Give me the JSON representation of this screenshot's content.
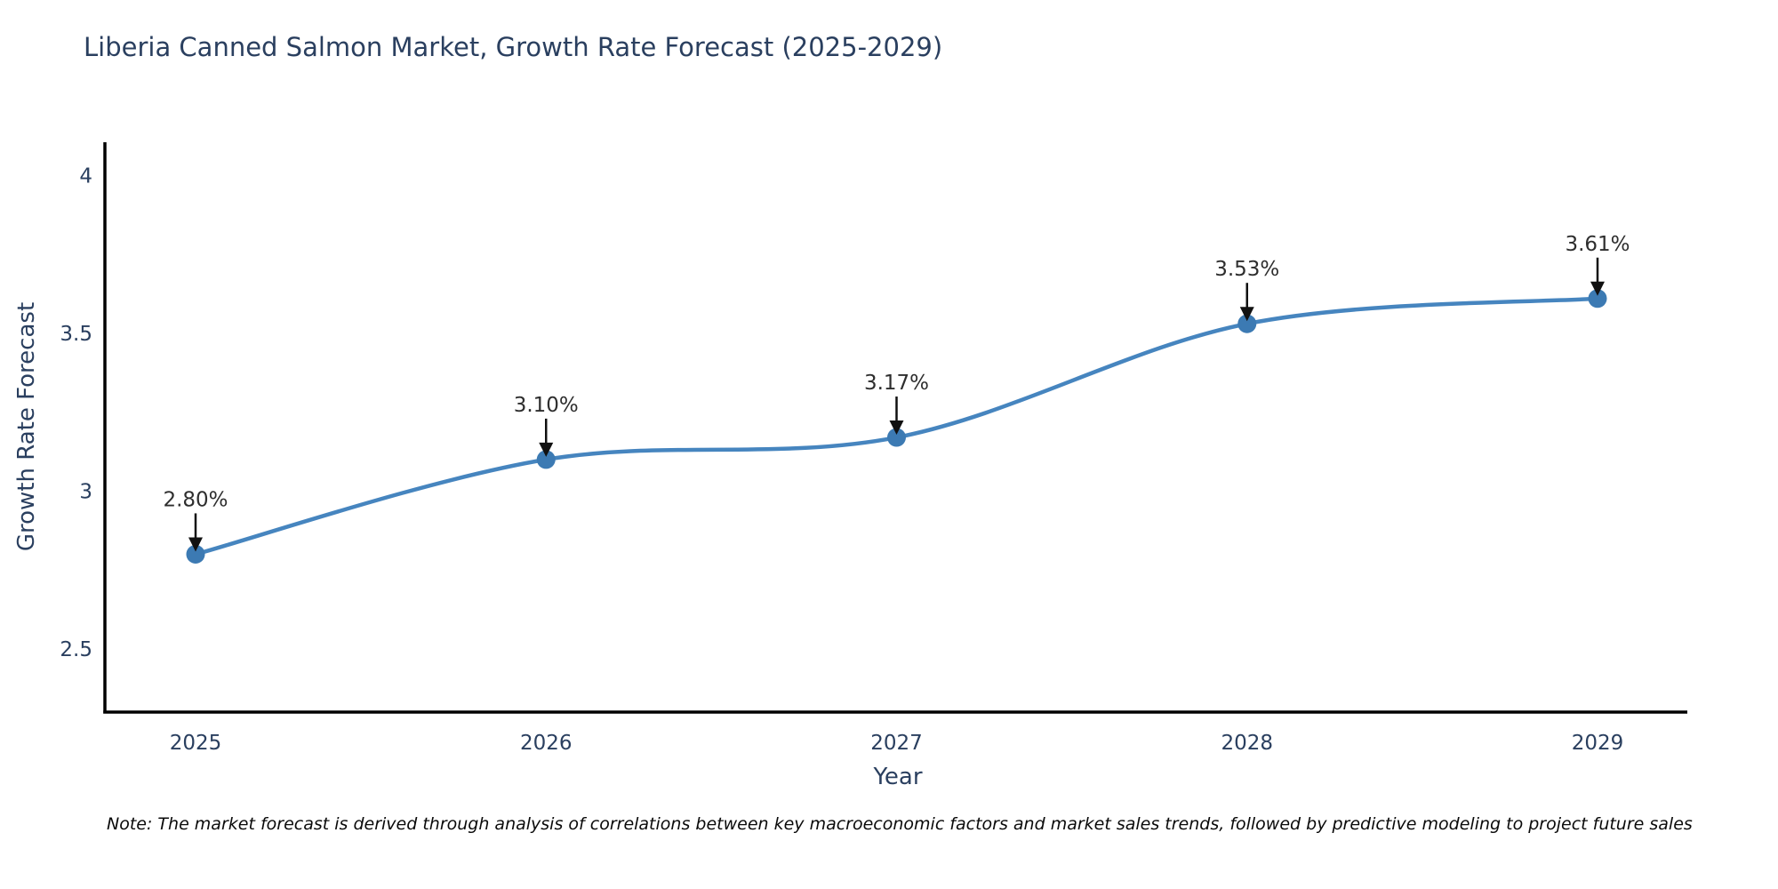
{
  "title": "Liberia Canned Salmon Market, Growth Rate Forecast (2025-2029)",
  "note": "Note: The market forecast is derived through analysis of correlations between key macroeconomic factors and market sales trends, followed by predictive modeling to project future sales",
  "chart_data": {
    "type": "line",
    "title": "Liberia Canned Salmon Market, Growth Rate Forecast (2025-2029)",
    "x": [
      "2025",
      "2026",
      "2027",
      "2028",
      "2029"
    ],
    "y": [
      2.8,
      3.1,
      3.17,
      3.53,
      3.61
    ],
    "point_labels": [
      "2.80%",
      "3.10%",
      "3.17%",
      "3.53%",
      "3.61%"
    ],
    "xlabel": "Year",
    "ylabel": "Growth Rate Forecast",
    "ytick_labels": [
      "2.5",
      "3",
      "3.5",
      "4"
    ],
    "ytick_values": [
      2.5,
      3.0,
      3.5,
      4.0
    ],
    "ylim": [
      2.3,
      4.105
    ],
    "grid": false,
    "legend": "none",
    "smoothing": "spline",
    "colors": {
      "line": "#4685bf",
      "marker": "#3c7ab3",
      "axis": "#000000",
      "tick_text": "#2a3f5f",
      "annotation_text": "#2e2e2e",
      "annotation_arrow": "#111111"
    }
  }
}
